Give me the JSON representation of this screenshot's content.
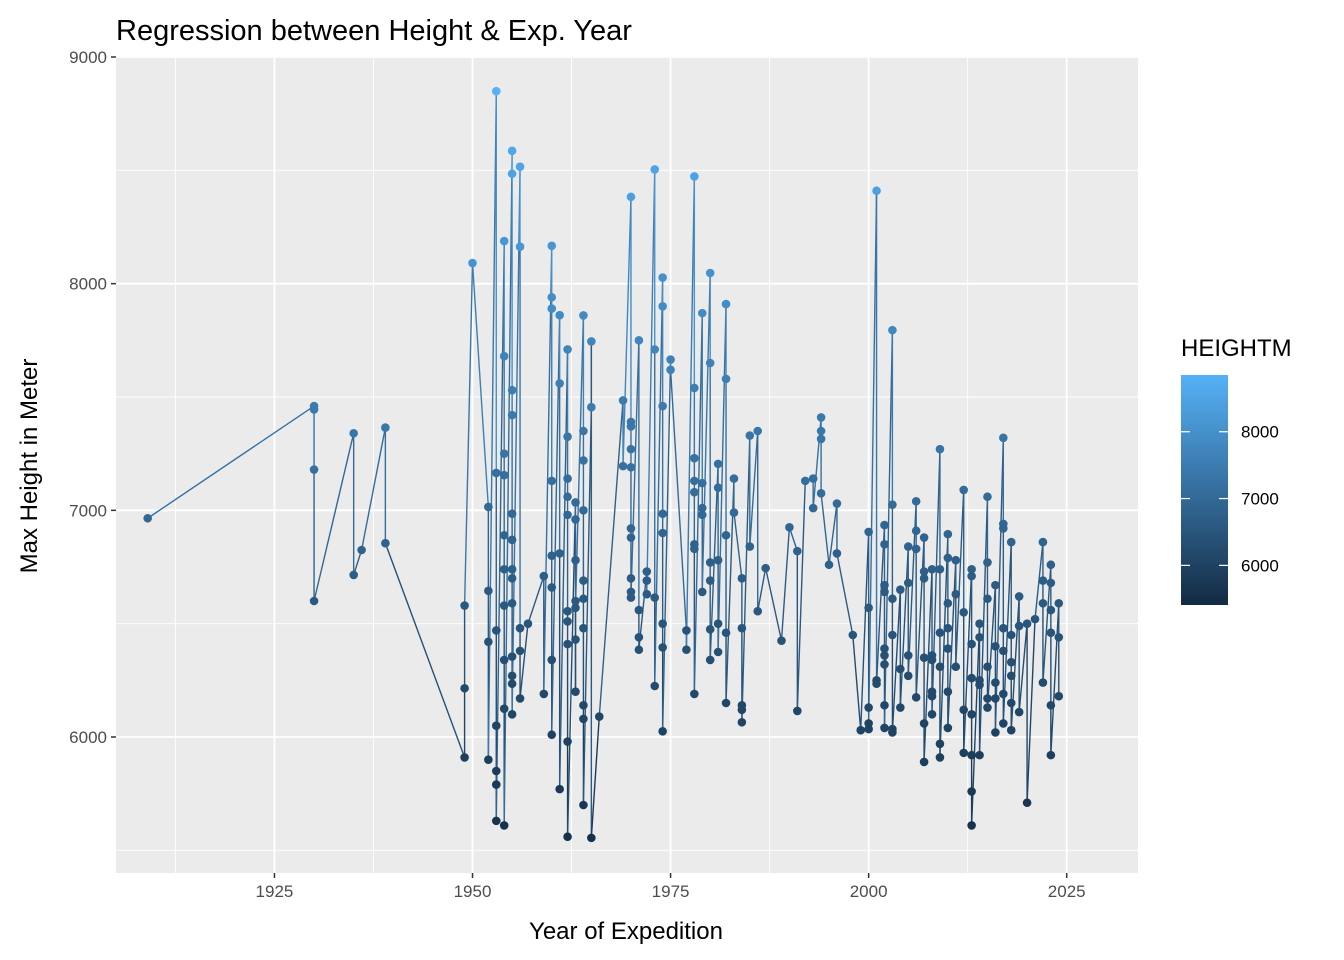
{
  "chart_data": {
    "type": "line",
    "title": "Regression between Height & Exp. Year",
    "xlabel": "Year of Expedition",
    "ylabel": "Max Height in Meter",
    "xlim": [
      1905,
      2034
    ],
    "ylim": [
      5400,
      9000
    ],
    "x_ticks": [
      1925,
      1950,
      1975,
      2000,
      2025
    ],
    "x_tick_labels": [
      "1925",
      "1950",
      "1975",
      "2000",
      "2025"
    ],
    "y_ticks": [
      6000,
      7000,
      8000,
      9000
    ],
    "y_tick_labels": [
      "6000",
      "7000",
      "8000",
      "9000"
    ],
    "grid": true,
    "background": "#ebebeb",
    "color_scale": {
      "variable": "HEIGHTM",
      "low_color": "#132b43",
      "high_color": "#56b1f7",
      "range": [
        5407,
        8849
      ],
      "breaks": [
        6000,
        7000,
        8000
      ],
      "break_labels": [
        "6000",
        "7000",
        "8000"
      ]
    },
    "legend_placement": "right",
    "points": [
      [
        1909,
        6965
      ],
      [
        1930,
        7460
      ],
      [
        1930,
        7445
      ],
      [
        1930,
        7180
      ],
      [
        1930,
        6600
      ],
      [
        1935,
        7340
      ],
      [
        1935,
        6715
      ],
      [
        1936,
        6825
      ],
      [
        1939,
        7365
      ],
      [
        1939,
        6855
      ],
      [
        1949,
        5910
      ],
      [
        1949,
        6215
      ],
      [
        1949,
        6580
      ],
      [
        1950,
        8091
      ],
      [
        1952,
        7015
      ],
      [
        1952,
        6645
      ],
      [
        1952,
        6420
      ],
      [
        1952,
        5900
      ],
      [
        1953,
        8849
      ],
      [
        1953,
        7165
      ],
      [
        1953,
        6470
      ],
      [
        1953,
        6050
      ],
      [
        1953,
        5850
      ],
      [
        1953,
        5790
      ],
      [
        1953,
        5630
      ],
      [
        1954,
        8188
      ],
      [
        1954,
        7680
      ],
      [
        1954,
        7250
      ],
      [
        1954,
        7155
      ],
      [
        1954,
        6890
      ],
      [
        1954,
        6740
      ],
      [
        1954,
        6580
      ],
      [
        1954,
        6340
      ],
      [
        1954,
        6125
      ],
      [
        1954,
        5610
      ],
      [
        1955,
        8586
      ],
      [
        1955,
        8485
      ],
      [
        1955,
        7530
      ],
      [
        1955,
        7420
      ],
      [
        1955,
        6985
      ],
      [
        1955,
        6870
      ],
      [
        1955,
        6740
      ],
      [
        1955,
        6700
      ],
      [
        1955,
        6590
      ],
      [
        1955,
        6355
      ],
      [
        1955,
        6270
      ],
      [
        1955,
        6235
      ],
      [
        1955,
        6100
      ],
      [
        1956,
        8516
      ],
      [
        1956,
        8163
      ],
      [
        1956,
        6480
      ],
      [
        1956,
        6380
      ],
      [
        1956,
        6170
      ],
      [
        1957,
        6500
      ],
      [
        1959,
        6710
      ],
      [
        1959,
        6190
      ],
      [
        1960,
        8167
      ],
      [
        1960,
        7940
      ],
      [
        1960,
        7890
      ],
      [
        1960,
        7130
      ],
      [
        1960,
        6800
      ],
      [
        1960,
        6660
      ],
      [
        1960,
        6340
      ],
      [
        1960,
        6010
      ],
      [
        1961,
        7861
      ],
      [
        1961,
        7560
      ],
      [
        1961,
        6810
      ],
      [
        1961,
        5770
      ],
      [
        1962,
        7710
      ],
      [
        1962,
        7325
      ],
      [
        1962,
        7140
      ],
      [
        1962,
        7060
      ],
      [
        1962,
        6980
      ],
      [
        1962,
        6555
      ],
      [
        1962,
        6510
      ],
      [
        1962,
        6410
      ],
      [
        1962,
        5980
      ],
      [
        1962,
        5560
      ],
      [
        1963,
        7035
      ],
      [
        1963,
        6960
      ],
      [
        1963,
        6780
      ],
      [
        1963,
        6600
      ],
      [
        1963,
        6430
      ],
      [
        1963,
        6200
      ],
      [
        1963,
        6570
      ],
      [
        1964,
        7860
      ],
      [
        1964,
        7350
      ],
      [
        1964,
        7220
      ],
      [
        1964,
        7000
      ],
      [
        1964,
        6690
      ],
      [
        1964,
        6610
      ],
      [
        1964,
        6480
      ],
      [
        1964,
        6140
      ],
      [
        1964,
        6080
      ],
      [
        1964,
        5700
      ],
      [
        1965,
        7455
      ],
      [
        1965,
        7745
      ],
      [
        1965,
        5555
      ],
      [
        1966,
        6090
      ],
      [
        1969,
        7485
      ],
      [
        1969,
        7195
      ],
      [
        1970,
        8383
      ],
      [
        1970,
        7390
      ],
      [
        1970,
        7370
      ],
      [
        1970,
        7270
      ],
      [
        1970,
        7190
      ],
      [
        1970,
        6920
      ],
      [
        1970,
        6880
      ],
      [
        1970,
        6700
      ],
      [
        1970,
        6640
      ],
      [
        1970,
        6615
      ],
      [
        1971,
        7750
      ],
      [
        1971,
        6560
      ],
      [
        1971,
        6440
      ],
      [
        1971,
        6385
      ],
      [
        1972,
        6730
      ],
      [
        1972,
        6690
      ],
      [
        1972,
        6630
      ],
      [
        1973,
        8504
      ],
      [
        1973,
        7710
      ],
      [
        1973,
        6615
      ],
      [
        1973,
        6225
      ],
      [
        1974,
        8027
      ],
      [
        1974,
        7900
      ],
      [
        1974,
        7460
      ],
      [
        1974,
        6985
      ],
      [
        1974,
        6900
      ],
      [
        1974,
        6500
      ],
      [
        1974,
        6395
      ],
      [
        1974,
        6025
      ],
      [
        1975,
        7665
      ],
      [
        1975,
        7620
      ],
      [
        1977,
        6470
      ],
      [
        1977,
        6385
      ],
      [
        1978,
        8473
      ],
      [
        1978,
        7540
      ],
      [
        1978,
        7230
      ],
      [
        1978,
        7130
      ],
      [
        1978,
        7080
      ],
      [
        1978,
        6850
      ],
      [
        1978,
        6830
      ],
      [
        1978,
        6190
      ],
      [
        1979,
        7870
      ],
      [
        1979,
        7120
      ],
      [
        1979,
        7010
      ],
      [
        1979,
        6980
      ],
      [
        1979,
        6640
      ],
      [
        1980,
        8047
      ],
      [
        1980,
        7650
      ],
      [
        1980,
        6770
      ],
      [
        1980,
        6690
      ],
      [
        1980,
        6475
      ],
      [
        1980,
        6340
      ],
      [
        1981,
        7205
      ],
      [
        1981,
        7100
      ],
      [
        1981,
        6780
      ],
      [
        1981,
        6500
      ],
      [
        1981,
        6375
      ],
      [
        1982,
        7910
      ],
      [
        1982,
        7580
      ],
      [
        1982,
        6890
      ],
      [
        1982,
        6460
      ],
      [
        1982,
        6150
      ],
      [
        1983,
        7140
      ],
      [
        1983,
        6990
      ],
      [
        1984,
        6700
      ],
      [
        1984,
        6480
      ],
      [
        1984,
        6140
      ],
      [
        1984,
        6120
      ],
      [
        1984,
        6065
      ],
      [
        1985,
        7330
      ],
      [
        1985,
        6840
      ],
      [
        1986,
        7350
      ],
      [
        1986,
        6555
      ],
      [
        1987,
        6745
      ],
      [
        1989,
        6425
      ],
      [
        1990,
        6925
      ],
      [
        1991,
        6820
      ],
      [
        1991,
        6115
      ],
      [
        1992,
        7130
      ],
      [
        1993,
        7140
      ],
      [
        1993,
        7010
      ],
      [
        1994,
        7410
      ],
      [
        1994,
        7350
      ],
      [
        1994,
        7315
      ],
      [
        1994,
        7075
      ],
      [
        1995,
        6760
      ],
      [
        1996,
        7030
      ],
      [
        1996,
        6810
      ],
      [
        1998,
        6450
      ],
      [
        1999,
        6030
      ],
      [
        2000,
        6905
      ],
      [
        2000,
        6570
      ],
      [
        2000,
        6130
      ],
      [
        2000,
        6060
      ],
      [
        2000,
        6035
      ],
      [
        2001,
        8410
      ],
      [
        2001,
        6250
      ],
      [
        2001,
        6235
      ],
      [
        2002,
        6935
      ],
      [
        2002,
        6850
      ],
      [
        2002,
        6670
      ],
      [
        2002,
        6640
      ],
      [
        2002,
        6390
      ],
      [
        2002,
        6360
      ],
      [
        2002,
        6320
      ],
      [
        2002,
        6140
      ],
      [
        2002,
        6040
      ],
      [
        2003,
        7795
      ],
      [
        2003,
        7025
      ],
      [
        2003,
        6610
      ],
      [
        2003,
        6450
      ],
      [
        2003,
        6035
      ],
      [
        2003,
        6020
      ],
      [
        2004,
        6650
      ],
      [
        2004,
        6300
      ],
      [
        2004,
        6130
      ],
      [
        2005,
        6840
      ],
      [
        2005,
        6680
      ],
      [
        2005,
        6360
      ],
      [
        2005,
        6270
      ],
      [
        2006,
        7040
      ],
      [
        2006,
        6910
      ],
      [
        2006,
        6830
      ],
      [
        2006,
        6175
      ],
      [
        2007,
        6880
      ],
      [
        2007,
        6730
      ],
      [
        2007,
        6700
      ],
      [
        2007,
        6350
      ],
      [
        2007,
        6060
      ],
      [
        2007,
        5890
      ],
      [
        2008,
        6740
      ],
      [
        2008,
        6360
      ],
      [
        2008,
        6340
      ],
      [
        2008,
        6200
      ],
      [
        2008,
        6180
      ],
      [
        2008,
        6100
      ],
      [
        2009,
        7270
      ],
      [
        2009,
        6740
      ],
      [
        2009,
        6460
      ],
      [
        2009,
        6310
      ],
      [
        2009,
        5970
      ],
      [
        2009,
        5910
      ],
      [
        2010,
        6895
      ],
      [
        2010,
        6790
      ],
      [
        2010,
        6590
      ],
      [
        2010,
        6480
      ],
      [
        2010,
        6390
      ],
      [
        2010,
        6200
      ],
      [
        2010,
        6040
      ],
      [
        2011,
        6780
      ],
      [
        2011,
        6630
      ],
      [
        2011,
        6310
      ],
      [
        2012,
        7090
      ],
      [
        2012,
        6550
      ],
      [
        2012,
        6120
      ],
      [
        2012,
        5930
      ],
      [
        2013,
        6740
      ],
      [
        2013,
        6710
      ],
      [
        2013,
        6410
      ],
      [
        2013,
        6260
      ],
      [
        2013,
        6100
      ],
      [
        2013,
        5920
      ],
      [
        2013,
        5760
      ],
      [
        2013,
        5610
      ],
      [
        2014,
        6500
      ],
      [
        2014,
        6440
      ],
      [
        2014,
        6250
      ],
      [
        2014,
        6230
      ],
      [
        2014,
        5920
      ],
      [
        2015,
        7060
      ],
      [
        2015,
        6770
      ],
      [
        2015,
        6610
      ],
      [
        2015,
        6310
      ],
      [
        2015,
        6170
      ],
      [
        2015,
        6130
      ],
      [
        2016,
        6670
      ],
      [
        2016,
        6400
      ],
      [
        2016,
        6240
      ],
      [
        2016,
        6170
      ],
      [
        2016,
        6020
      ],
      [
        2017,
        7320
      ],
      [
        2017,
        6940
      ],
      [
        2017,
        6920
      ],
      [
        2017,
        6480
      ],
      [
        2017,
        6380
      ],
      [
        2017,
        6190
      ],
      [
        2017,
        6060
      ],
      [
        2018,
        6860
      ],
      [
        2018,
        6450
      ],
      [
        2018,
        6330
      ],
      [
        2018,
        6270
      ],
      [
        2018,
        6150
      ],
      [
        2018,
        6030
      ],
      [
        2019,
        6620
      ],
      [
        2019,
        6490
      ],
      [
        2019,
        6110
      ],
      [
        2020,
        6500
      ],
      [
        2020,
        5710
      ],
      [
        2021,
        6520
      ],
      [
        2022,
        6860
      ],
      [
        2022,
        6690
      ],
      [
        2022,
        6590
      ],
      [
        2022,
        6240
      ],
      [
        2023,
        6760
      ],
      [
        2023,
        6680
      ],
      [
        2023,
        6560
      ],
      [
        2023,
        6460
      ],
      [
        2023,
        6140
      ],
      [
        2023,
        5920
      ],
      [
        2024,
        6590
      ],
      [
        2024,
        6440
      ],
      [
        2024,
        6180
      ]
    ]
  }
}
